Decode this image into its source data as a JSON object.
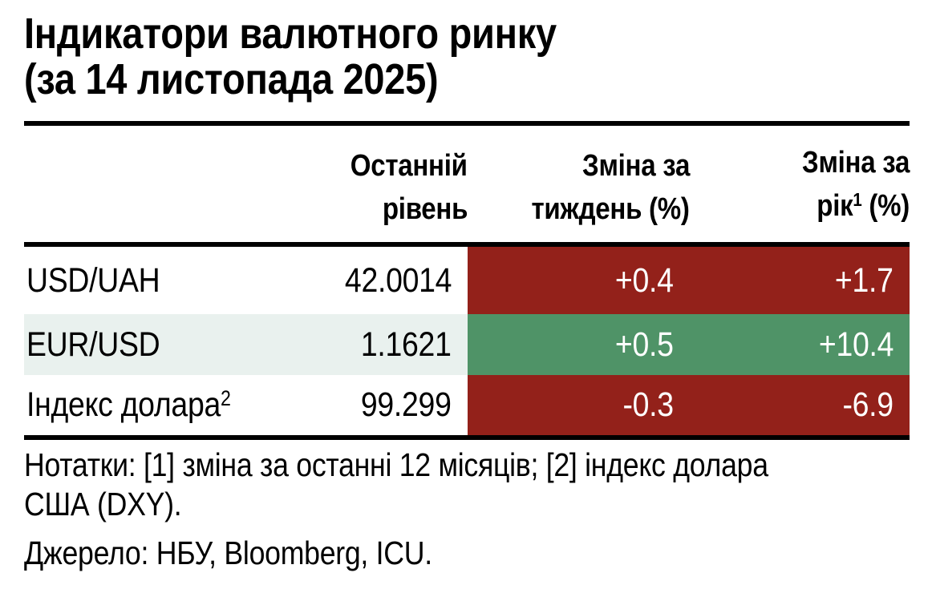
{
  "title": {
    "line1": "Індикатори валютного ринку",
    "line2": "(за 14 листопада 2025)"
  },
  "table": {
    "headers": {
      "level_line1": "Останній",
      "level_line2": "рівень",
      "week_line1": "Зміна за",
      "week_line2": "тиждень (%)",
      "year_line1": "Зміна за",
      "year_line2_base": "рік",
      "year_line2_sup": "1",
      "year_line2_rest": " (%)"
    },
    "rows": [
      {
        "label": "USD/UAH",
        "label_sup": "",
        "level": "42.0014",
        "week": "+0.4",
        "year": "+1.7",
        "tone": "negative"
      },
      {
        "label": "EUR/USD",
        "label_sup": "",
        "level": "1.1621",
        "week": "+0.5",
        "year": "+10.4",
        "tone": "positive"
      },
      {
        "label": "Індекс долара",
        "label_sup": "2",
        "level": "99.299",
        "week": "-0.3",
        "year": "-6.9",
        "tone": "negative"
      }
    ]
  },
  "notes": {
    "line1": "Нотатки: [1] зміна за останні 12 місяців; [2] індекс долара",
    "line2": "США (DXY)."
  },
  "source": "Джерело: НБУ, Bloomberg, ICU.",
  "colors": {
    "negative": "#93211A",
    "positive": "#4F9367",
    "row_highlight": "#E9F1EE",
    "text": "#000000",
    "change_text": "#FFFFFF"
  },
  "chart_data": {
    "type": "table",
    "title": "Індикатори валютного ринку (за 14 листопада 2025)",
    "columns": [
      "",
      "Останній рівень",
      "Зміна за тиждень (%)",
      "Зміна за рік [1] (%)"
    ],
    "rows": [
      [
        "USD/UAH",
        42.0014,
        0.4,
        1.7
      ],
      [
        "EUR/USD",
        1.1621,
        0.5,
        10.4
      ],
      [
        "Індекс долара [2]",
        99.299,
        -0.3,
        -6.9
      ]
    ],
    "cell_color_rule": "red = negative signal, green = positive signal",
    "notes": "Нотатки: [1] зміна за останні 12 місяців; [2] індекс долара США (DXY).",
    "source": "Джерело: НБУ, Bloomberg, ICU."
  }
}
